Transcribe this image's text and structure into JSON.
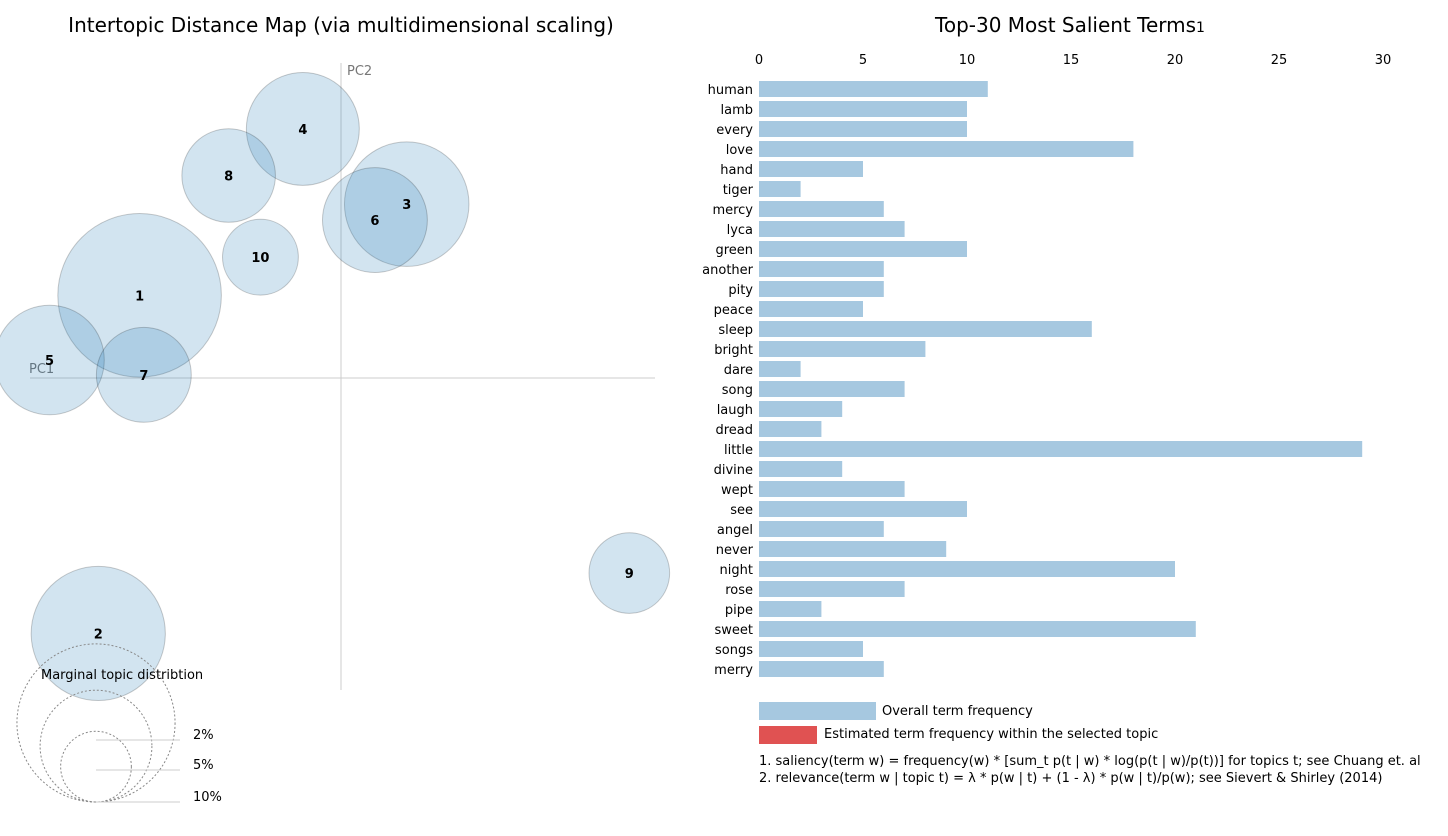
{
  "map": {
    "title": "Intertopic Distance Map (via multidimensional scaling)",
    "pc1_label": "PC1",
    "pc2_label": "PC2",
    "marginal_title": "Marginal topic distribtion",
    "marginal_scale": [
      "2%",
      "5%",
      "10%"
    ],
    "circle_color": "#1f77b4"
  },
  "terms_panel": {
    "title": "Top-30 Most Salient Terms",
    "title_footnote": "1",
    "legend_overall": "Overall term frequency",
    "legend_topic": "Estimated term frequency within the selected topic",
    "note1": "1. saliency(term w) = frequency(w) * [sum_t p(t | w) * log(p(t | w)/p(t))] for topics t; see Chuang et. al",
    "note2": "2. relevance(term w | topic t) = λ * p(w | t) + (1 - λ) * p(w | t)/p(w); see Sievert & Shirley (2014)",
    "bar_color": "#a6c8e0",
    "topic_bar_color": "#e05252"
  },
  "chart_data": [
    {
      "type": "scatter",
      "title": "Intertopic Distance Map (via multidimensional scaling)",
      "xlabel": "PC1",
      "ylabel": "PC2",
      "topics": [
        {
          "label": "1",
          "x": -0.19,
          "y": 0.078,
          "size": 10.7
        },
        {
          "label": "2",
          "x": -0.229,
          "y": -0.241,
          "size": 7.2
        },
        {
          "label": "3",
          "x": 0.062,
          "y": 0.164,
          "size": 6.2
        },
        {
          "label": "4",
          "x": -0.036,
          "y": 0.235,
          "size": 5.1
        },
        {
          "label": "5",
          "x": -0.275,
          "y": 0.017,
          "size": 4.8
        },
        {
          "label": "6",
          "x": 0.032,
          "y": 0.149,
          "size": 4.4
        },
        {
          "label": "7",
          "x": -0.186,
          "y": 0.003,
          "size": 3.6
        },
        {
          "label": "8",
          "x": -0.106,
          "y": 0.191,
          "size": 3.5
        },
        {
          "label": "9",
          "x": 0.272,
          "y": -0.184,
          "size": 2.6
        },
        {
          "label": "10",
          "x": -0.076,
          "y": 0.114,
          "size": 2.3
        }
      ]
    },
    {
      "type": "bar",
      "orientation": "horizontal",
      "title": "Top-30 Most Salient Terms",
      "xlim": [
        0,
        30
      ],
      "xticks": [
        "0",
        "5",
        "10",
        "15",
        "20",
        "25",
        "30"
      ],
      "categories": [
        "human",
        "lamb",
        "every",
        "love",
        "hand",
        "tiger",
        "mercy",
        "lyca",
        "green",
        "another",
        "pity",
        "peace",
        "sleep",
        "bright",
        "dare",
        "song",
        "laugh",
        "dread",
        "little",
        "divine",
        "wept",
        "see",
        "angel",
        "never",
        "night",
        "rose",
        "pipe",
        "sweet",
        "songs",
        "merry"
      ],
      "series": [
        {
          "name": "Overall term frequency",
          "values": [
            11,
            10,
            10,
            18,
            5,
            2,
            6,
            7,
            10,
            6,
            6,
            5,
            16,
            8,
            2,
            7,
            4,
            3,
            29,
            4,
            7,
            10,
            6,
            9,
            20,
            7,
            3,
            21,
            5,
            6
          ]
        }
      ]
    }
  ]
}
